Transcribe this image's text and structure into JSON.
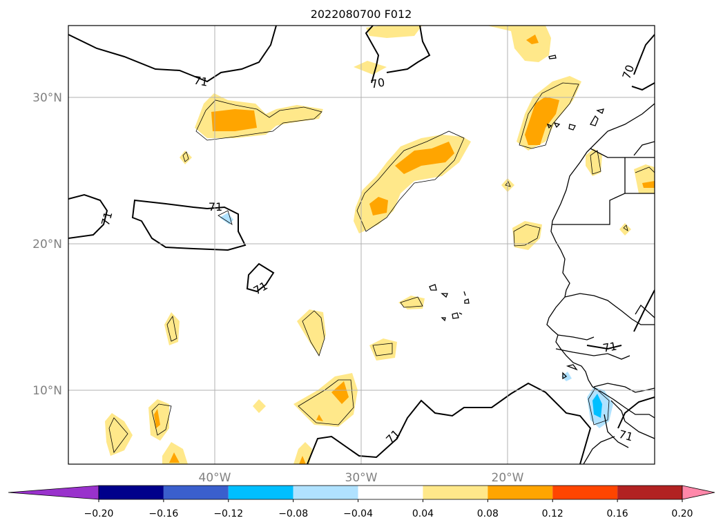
{
  "title": "2022080700 F012",
  "lat_ticks": [
    "30°N",
    "20°N",
    "10°N"
  ],
  "lon_ticks": [
    "40°W",
    "30°W",
    "20°W"
  ],
  "contour_labels": [
    "71",
    "70",
    "71",
    "71",
    "71",
    "70",
    "71",
    "71",
    "71"
  ],
  "colorbar": {
    "labels": [
      "−0.20",
      "−0.16",
      "−0.12",
      "−0.08",
      "−0.04",
      "0.04",
      "0.08",
      "0.12",
      "0.16",
      "0.20"
    ],
    "colors": [
      "#9932cc",
      "#00008b",
      "#3a5fcd",
      "#00bfff",
      "#b0e2ff",
      "#ffffff",
      "#ffe88a",
      "#ffa500",
      "#ff4500",
      "#b22222",
      "#ff88aa"
    ],
    "under_color": "#9932cc",
    "over_color": "#ff88aa"
  },
  "colors": {
    "light_yellow": "#ffe88a",
    "orange": "#ffa500",
    "light_blue": "#b0e2ff",
    "cyan": "#00bfff",
    "grid": "#b0b0b0"
  }
}
